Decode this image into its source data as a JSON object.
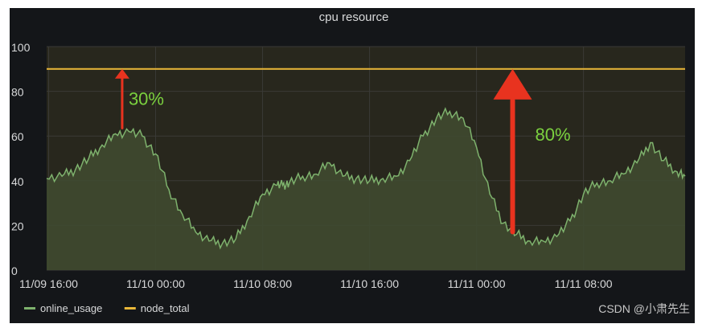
{
  "chart_data": {
    "type": "line",
    "title": "cpu resource",
    "ylim": [
      0,
      100
    ],
    "y_ticks": [
      "0",
      "20",
      "40",
      "60",
      "80",
      "100"
    ],
    "x_tick_labels": [
      "11/09 16:00",
      "11/10 00:00",
      "11/10 08:00",
      "11/10 16:00",
      "11/11 00:00",
      "11/11 08:00"
    ],
    "x_range_hours": [
      -0.15,
      47.6
    ],
    "grid": true,
    "legend_position": "bottom-left",
    "series": [
      {
        "name": "online_usage",
        "color": "#7eb26d",
        "x_hours": [
          -0.15,
          1.0,
          2.0,
          3.0,
          4.0,
          5.0,
          6.0,
          7.0,
          8.0,
          9.0,
          10.0,
          11.0,
          12.0,
          13.0,
          14.0,
          15.0,
          16.0,
          17.0,
          17.5,
          18.0,
          19.0,
          20.0,
          21.0,
          22.0,
          23.0,
          24.0,
          25.0,
          26.0,
          27.0,
          28.0,
          29.0,
          30.0,
          31.0,
          32.0,
          33.0,
          34.0,
          35.0,
          36.0,
          37.0,
          38.0,
          39.0,
          40.0,
          41.0,
          42.0,
          43.0,
          44.0,
          45.0,
          46.0,
          47.0,
          47.6
        ],
        "values": [
          41,
          42,
          45,
          50,
          56,
          61,
          62,
          60,
          52,
          36,
          25,
          17,
          13,
          12,
          14,
          24,
          34,
          38,
          38,
          39,
          42,
          43,
          48,
          42,
          41,
          40,
          41,
          42,
          49,
          60,
          68,
          71,
          68,
          55,
          34,
          21,
          16,
          13,
          13,
          15,
          22,
          34,
          39,
          40,
          43,
          48,
          57,
          49,
          44,
          42
        ]
      },
      {
        "name": "node_total",
        "color": "#eab839",
        "x_hours": [
          -0.15,
          47.6
        ],
        "values": [
          90,
          90
        ]
      }
    ],
    "annotations": [
      {
        "text": "30%",
        "color": "#7bd13f",
        "arrow_color": "#e8331f",
        "arrow_x_hours": 5.5,
        "arrow_from": 63,
        "arrow_to": 90
      },
      {
        "text": "80%",
        "color": "#7bd13f",
        "arrow_color": "#e8331f",
        "arrow_x_hours": 34.7,
        "arrow_from": 16,
        "arrow_to": 90
      }
    ]
  },
  "watermark": "CSDN @小肃先生"
}
